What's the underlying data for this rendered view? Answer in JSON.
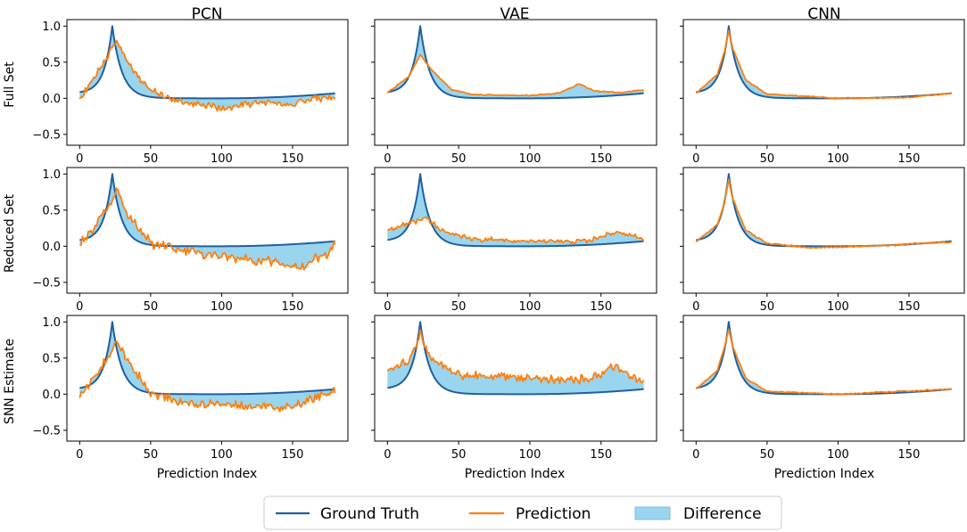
{
  "chart_data": {
    "type": "line",
    "layout": "3x3 grid of subplots",
    "column_titles": [
      "PCN",
      "VAE",
      "CNN"
    ],
    "row_labels": [
      "Full Set",
      "Reduced Set",
      "SNN Estimate"
    ],
    "xlabel": "Prediction Index",
    "x_range": [
      0,
      180
    ],
    "xlim": [
      -9,
      189
    ],
    "ylim": [
      -0.65,
      1.09
    ],
    "x_ticks": [
      0,
      50,
      100,
      150
    ],
    "y_ticks": [
      -0.5,
      0.0,
      0.5,
      1.0
    ],
    "y_tick_labels": [
      "−0.5",
      "0.0",
      "0.5",
      "1.0"
    ],
    "legend": {
      "position": "bottom-center",
      "entries": [
        {
          "label": "Ground Truth",
          "kind": "line",
          "color": "#1f5f9f"
        },
        {
          "label": "Prediction",
          "kind": "line",
          "color": "#ff7f0e"
        },
        {
          "label": "Difference",
          "kind": "patch",
          "color": "#87ceeb"
        }
      ]
    },
    "ground_truth": {
      "description": "Peak of 1.0 at index 23; shared by all subplots",
      "keypoints": [
        [
          0,
          0.07
        ],
        [
          10,
          0.19
        ],
        [
          15,
          0.32
        ],
        [
          20,
          0.67
        ],
        [
          23,
          1.0
        ],
        [
          26,
          0.63
        ],
        [
          30,
          0.38
        ],
        [
          40,
          0.14
        ],
        [
          50,
          0.05
        ],
        [
          60,
          0.02
        ],
        [
          100,
          0.0
        ],
        [
          150,
          0.01
        ],
        [
          170,
          0.04
        ],
        [
          180,
          0.07
        ]
      ]
    },
    "panels": [
      {
        "row": 0,
        "col": 0,
        "model": "PCN",
        "dataset": "Full Set",
        "prediction_keypoints": [
          [
            0,
            -0.02
          ],
          [
            20,
            0.6
          ],
          [
            26,
            0.8
          ],
          [
            35,
            0.45
          ],
          [
            50,
            0.12
          ],
          [
            70,
            -0.05
          ],
          [
            100,
            -0.13
          ],
          [
            130,
            -0.05
          ],
          [
            150,
            -0.08
          ],
          [
            180,
            0.04
          ]
        ],
        "noise_amplitude": 0.06
      },
      {
        "row": 0,
        "col": 1,
        "model": "VAE",
        "dataset": "Full Set",
        "prediction_keypoints": [
          [
            0,
            0.08
          ],
          [
            15,
            0.3
          ],
          [
            23,
            0.6
          ],
          [
            30,
            0.42
          ],
          [
            45,
            0.12
          ],
          [
            60,
            0.05
          ],
          [
            100,
            0.04
          ],
          [
            120,
            0.07
          ],
          [
            135,
            0.2
          ],
          [
            145,
            0.1
          ],
          [
            165,
            0.08
          ],
          [
            180,
            0.12
          ]
        ],
        "noise_amplitude": 0.01
      },
      {
        "row": 0,
        "col": 2,
        "model": "CNN",
        "dataset": "Full Set",
        "prediction_keypoints": [
          [
            0,
            0.07
          ],
          [
            15,
            0.33
          ],
          [
            20,
            0.65
          ],
          [
            23,
            0.93
          ],
          [
            26,
            0.68
          ],
          [
            35,
            0.25
          ],
          [
            50,
            0.06
          ],
          [
            100,
            0.0
          ],
          [
            150,
            0.01
          ],
          [
            180,
            0.07
          ]
        ],
        "noise_amplitude": 0.01
      },
      {
        "row": 1,
        "col": 0,
        "model": "PCN",
        "dataset": "Reduced Set",
        "prediction_keypoints": [
          [
            0,
            0.0
          ],
          [
            20,
            0.55
          ],
          [
            26,
            0.8
          ],
          [
            35,
            0.4
          ],
          [
            50,
            0.05
          ],
          [
            70,
            -0.05
          ],
          [
            100,
            -0.15
          ],
          [
            130,
            -0.2
          ],
          [
            155,
            -0.3
          ],
          [
            175,
            -0.1
          ],
          [
            180,
            0.06
          ]
        ],
        "noise_amplitude": 0.09
      },
      {
        "row": 1,
        "col": 1,
        "model": "VAE",
        "dataset": "Reduced Set",
        "prediction_keypoints": [
          [
            0,
            0.22
          ],
          [
            20,
            0.35
          ],
          [
            26,
            0.4
          ],
          [
            40,
            0.2
          ],
          [
            60,
            0.1
          ],
          [
            100,
            0.07
          ],
          [
            140,
            0.07
          ],
          [
            160,
            0.2
          ],
          [
            180,
            0.1
          ]
        ],
        "noise_amplitude": 0.04
      },
      {
        "row": 1,
        "col": 2,
        "model": "CNN",
        "dataset": "Reduced Set",
        "prediction_keypoints": [
          [
            0,
            0.06
          ],
          [
            15,
            0.3
          ],
          [
            20,
            0.6
          ],
          [
            23,
            0.92
          ],
          [
            26,
            0.65
          ],
          [
            35,
            0.22
          ],
          [
            50,
            0.04
          ],
          [
            80,
            -0.02
          ],
          [
            120,
            0.0
          ],
          [
            180,
            0.06
          ]
        ],
        "noise_amplitude": 0.015
      },
      {
        "row": 2,
        "col": 0,
        "model": "PCN",
        "dataset": "SNN Estimate",
        "prediction_keypoints": [
          [
            0,
            -0.02
          ],
          [
            20,
            0.5
          ],
          [
            26,
            0.75
          ],
          [
            35,
            0.42
          ],
          [
            50,
            0.02
          ],
          [
            80,
            -0.15
          ],
          [
            110,
            -0.15
          ],
          [
            140,
            -0.2
          ],
          [
            160,
            -0.1
          ],
          [
            180,
            0.06
          ]
        ],
        "noise_amplitude": 0.08
      },
      {
        "row": 2,
        "col": 1,
        "model": "VAE",
        "dataset": "SNN Estimate",
        "prediction_keypoints": [
          [
            0,
            0.3
          ],
          [
            15,
            0.45
          ],
          [
            23,
            0.85
          ],
          [
            30,
            0.5
          ],
          [
            50,
            0.25
          ],
          [
            80,
            0.25
          ],
          [
            110,
            0.2
          ],
          [
            140,
            0.2
          ],
          [
            160,
            0.4
          ],
          [
            180,
            0.15
          ]
        ],
        "noise_amplitude": 0.08
      },
      {
        "row": 2,
        "col": 2,
        "model": "CNN",
        "dataset": "SNN Estimate",
        "prediction_keypoints": [
          [
            0,
            0.07
          ],
          [
            15,
            0.33
          ],
          [
            20,
            0.65
          ],
          [
            23,
            0.9
          ],
          [
            26,
            0.65
          ],
          [
            35,
            0.22
          ],
          [
            50,
            0.04
          ],
          [
            100,
            0.0
          ],
          [
            180,
            0.07
          ]
        ],
        "noise_amplitude": 0.01
      }
    ]
  }
}
